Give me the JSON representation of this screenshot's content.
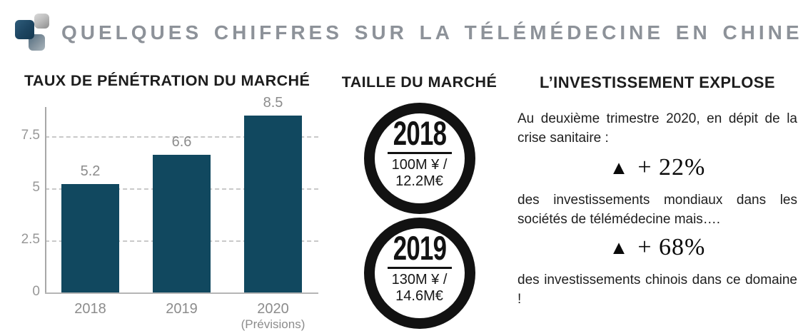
{
  "header": {
    "title": "QUELQUES CHIFFRES SUR LA TÉLÉMÉDECINE EN CHINE"
  },
  "chart_data": {
    "type": "bar",
    "title": "TAUX DE PÉNÉTRATION DU MARCHÉ",
    "categories": [
      "2018",
      "2019",
      "2020 (Prévisions)"
    ],
    "tick_labels": [
      {
        "label": "2018",
        "sublabel": ""
      },
      {
        "label": "2019",
        "sublabel": ""
      },
      {
        "label": "2020",
        "sublabel": "(Prévisions)"
      }
    ],
    "values": [
      5.2,
      6.6,
      8.5
    ],
    "data_labels": [
      "5.2",
      "6.6",
      "8.5"
    ],
    "yticks": [
      0,
      2.5,
      5,
      7.5
    ],
    "ytick_labels": [
      "0",
      "2.5",
      "5",
      "7.5"
    ],
    "ylim": [
      0,
      8.9
    ],
    "xlabel": "",
    "ylabel": "",
    "grid": "horizontal-dashed",
    "legend": "none",
    "bar_color": "#11485f"
  },
  "market": {
    "title": "TAILLE DU MARCHÉ",
    "badges": [
      {
        "year": "2018",
        "line1": "100M ¥ /",
        "line2": "12.2M€"
      },
      {
        "year": "2019",
        "line1": "130M ¥ /",
        "line2": "14.6M€"
      }
    ]
  },
  "investment": {
    "title": "L’INVESTISSEMENT EXPLOSE",
    "intro": "Au deuxième trimestre 2020, en dépit de la crise sanitaire :",
    "stats": [
      {
        "icon": "triangle-up",
        "value": "+ 22%",
        "description": "des investissements mondiaux dans les sociétés de télémédecine mais…."
      },
      {
        "icon": "triangle-up",
        "value": "+ 68%",
        "description": "des investissements chinois dans ce domaine !"
      }
    ]
  },
  "icons": {
    "triangle_up": "▲"
  },
  "colors": {
    "bar_teal": "#11485f",
    "header_gray": "#8d9299",
    "axis_gray": "#a8a8a8",
    "tick_gray": "#979797",
    "black": "#121212"
  }
}
